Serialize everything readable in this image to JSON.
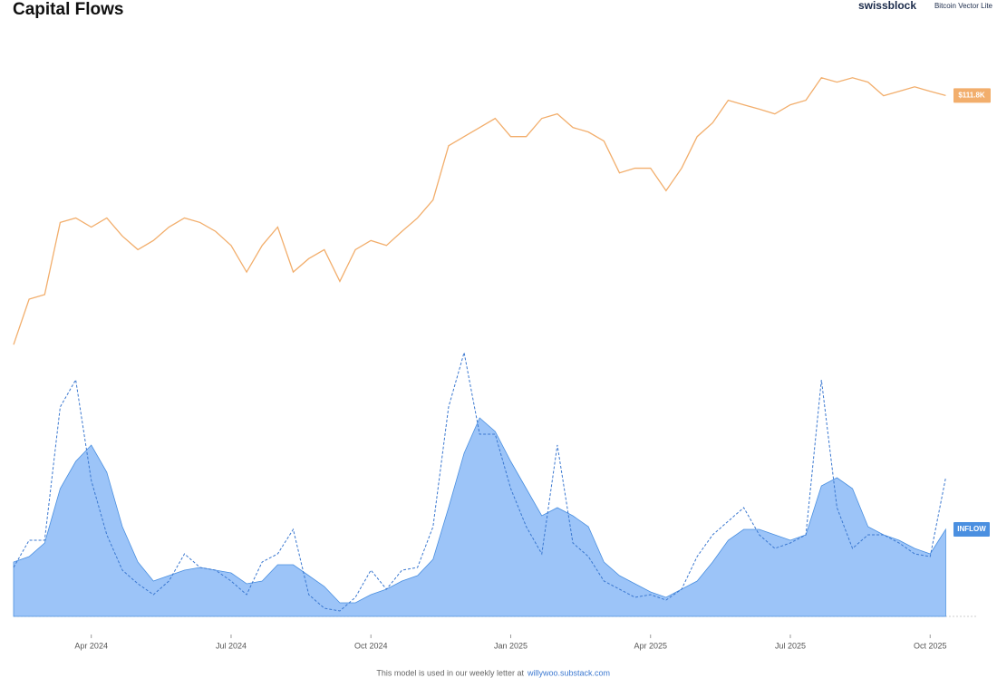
{
  "chart_data": {
    "type": "line",
    "title": "Capital Flows",
    "brand": "swissblock",
    "product": "Bitcoin Vector Lite",
    "footer": "This model is used in our weekly letter at",
    "footer_link": "willywoo.substack.com",
    "categories": [
      null,
      null,
      null,
      null,
      null,
      "Apr 2024",
      null,
      null,
      null,
      null,
      null,
      null,
      null,
      null,
      "Jul 2024",
      null,
      null,
      null,
      null,
      null,
      null,
      null,
      null,
      "Oct 2024",
      null,
      null,
      null,
      null,
      null,
      null,
      null,
      null,
      "Jan 2025",
      null,
      null,
      null,
      null,
      null,
      null,
      null,
      null,
      "Apr 2025",
      null,
      null,
      null,
      null,
      null,
      null,
      null,
      null,
      "Jul 2025",
      null,
      null,
      null,
      null,
      null,
      null,
      null,
      null,
      "Oct 2025",
      null
    ],
    "ylim": [
      40,
      130
    ],
    "ylog": true,
    "y2lim": [
      0,
      100
    ],
    "series": [
      {
        "color": "#f2ae6c",
        "kind": "line",
        "end_label": "$111.8K",
        "values": [
          43.0,
          51.2,
          52.1,
          68.7,
          69.9,
          67.5,
          69.9,
          65.2,
          61.9,
          64.1,
          67.5,
          69.9,
          68.7,
          66.4,
          62.9,
          56.8,
          62.9,
          67.5,
          56.8,
          59.8,
          61.9,
          54.8,
          61.9,
          64.1,
          62.9,
          66.4,
          69.9,
          74.9,
          92.2,
          95.5,
          98.9,
          102.4,
          95.5,
          95.5,
          102.4,
          104.2,
          98.9,
          97.2,
          93.9,
          83.1,
          84.6,
          84.6,
          77.6,
          84.6,
          95.5,
          100.7,
          109.8,
          107.9,
          106.1,
          104.2,
          107.9,
          109.8,
          119.7,
          117.7,
          119.7,
          117.7,
          111.7,
          113.6,
          115.6,
          113.6,
          111.8
        ]
      },
      {
        "name": "INFLOW",
        "color": "#4a8fe0",
        "kind": "area",
        "axis": "y2",
        "values": [
          20,
          22,
          27,
          47,
          57,
          63,
          53,
          33,
          20,
          13,
          15,
          17,
          18,
          17,
          16,
          12,
          13,
          19,
          19,
          15,
          11,
          5,
          5,
          8,
          10,
          13,
          15,
          21,
          40,
          60,
          73,
          68,
          57,
          47,
          37,
          40,
          37,
          33,
          20,
          15,
          12,
          9,
          7,
          10,
          13,
          20,
          28,
          32,
          32,
          30,
          28,
          30,
          48,
          51,
          47,
          33,
          30,
          28,
          25,
          23,
          32
        ]
      },
      {
        "color": "#3b78d0",
        "kind": "dashed",
        "axis": "y2",
        "values": [
          18,
          28,
          28,
          77,
          87,
          50,
          30,
          17,
          12,
          8,
          13,
          23,
          18,
          17,
          13,
          8,
          20,
          23,
          32,
          8,
          3,
          2,
          7,
          17,
          10,
          17,
          18,
          33,
          77,
          97,
          67,
          67,
          47,
          33,
          23,
          63,
          27,
          22,
          13,
          10,
          7,
          8,
          6,
          10,
          22,
          30,
          35,
          40,
          30,
          25,
          27,
          30,
          87,
          40,
          25,
          30,
          30,
          27,
          23,
          22,
          51
        ]
      }
    ]
  }
}
